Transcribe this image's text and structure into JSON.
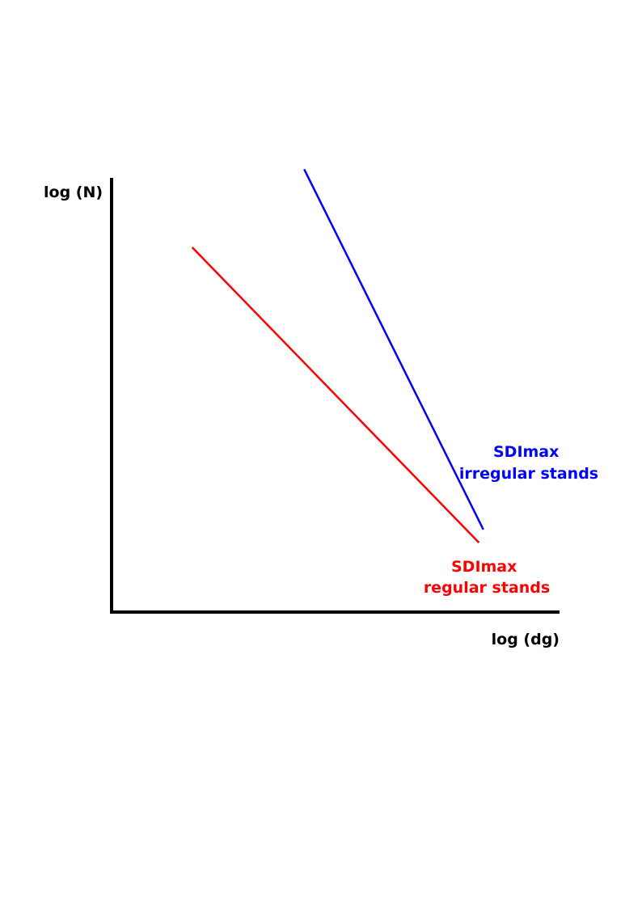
{
  "chart_data": {
    "type": "line",
    "xlabel": "log (dg)",
    "ylabel": "log (N)",
    "axis_ticks": false,
    "grid": false,
    "series": [
      {
        "name": "SDImax regular stands",
        "label_lines": [
          "SDImax",
          "regular stands"
        ],
        "color": "#ff0000",
        "points": [
          [
            0.18,
            0.84
          ],
          [
            0.82,
            0.16
          ]
        ]
      },
      {
        "name": "SDImax irregular stands",
        "label_lines": [
          "SDImax",
          "irregular stands"
        ],
        "color": "#0000ff",
        "points": [
          [
            0.43,
            1.02
          ],
          [
            0.83,
            0.19
          ]
        ]
      }
    ]
  }
}
